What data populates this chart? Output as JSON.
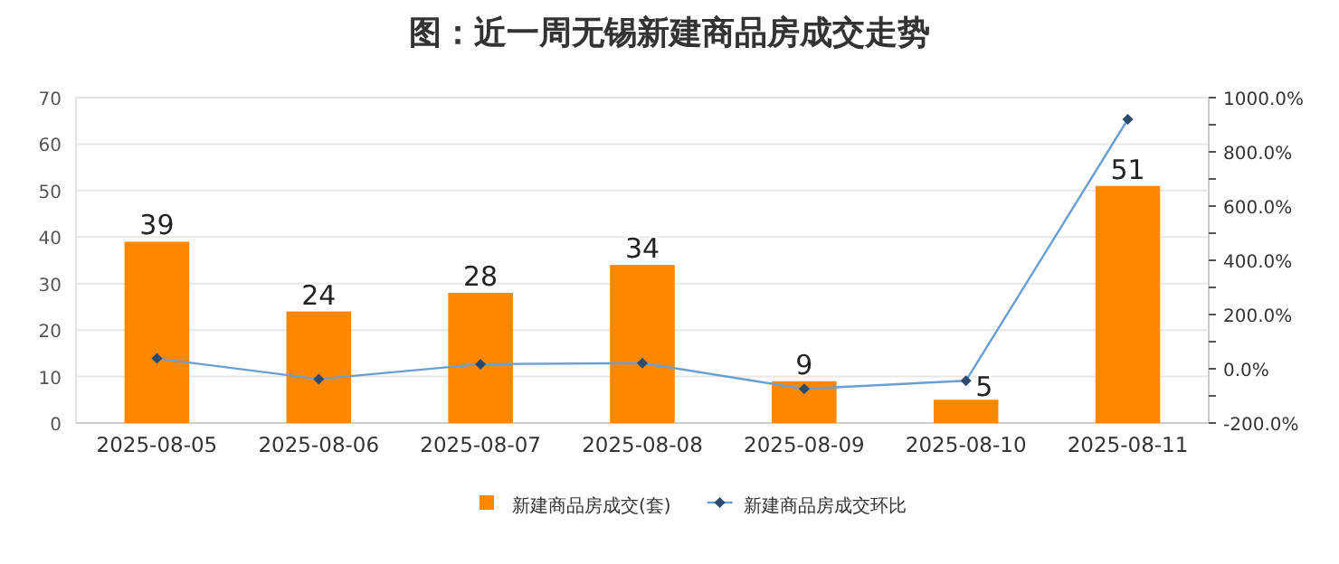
{
  "chart_data": {
    "type": "bar",
    "title": "图：近一周无锡新建商品房成交走势",
    "categories": [
      "2025-08-05",
      "2025-08-06",
      "2025-08-07",
      "2025-08-08",
      "2025-08-09",
      "2025-08-10",
      "2025-08-11"
    ],
    "series": [
      {
        "name": "新建商品房成交(套)",
        "color": "#ff8800",
        "values": [
          39,
          24,
          28,
          34,
          9,
          5,
          51
        ],
        "value_labels": [
          "39",
          "24",
          "28",
          "34",
          "9",
          "5",
          "51"
        ]
      },
      {
        "name": "新建商品房成交环比",
        "type": "line",
        "axis": "y2",
        "color": "#6a9fd4",
        "marker": "diamond",
        "values": [
          38,
          -38,
          17,
          21,
          -74,
          -44,
          920
        ]
      }
    ],
    "ylim": [
      0,
      70
    ],
    "yticks": [
      0,
      10,
      20,
      30,
      40,
      50,
      60,
      70
    ],
    "y2lim": [
      -200,
      1000
    ],
    "y2ticks": [
      {
        "value": -200,
        "label": "-200.0%"
      },
      {
        "value": -100,
        "label": null
      },
      {
        "value": 0,
        "label": "0.0%"
      },
      {
        "value": 100,
        "label": null
      },
      {
        "value": 200,
        "label": "200.0%"
      },
      {
        "value": 300,
        "label": null
      },
      {
        "value": 400,
        "label": "400.0%"
      },
      {
        "value": 500,
        "label": null
      },
      {
        "value": 600,
        "label": "600.0%"
      },
      {
        "value": 700,
        "label": null
      },
      {
        "value": 800,
        "label": "800.0%"
      },
      {
        "value": 900,
        "label": null
      },
      {
        "value": 1000,
        "label": "1000.0%"
      }
    ],
    "grid": "y",
    "legend": "bottom"
  }
}
